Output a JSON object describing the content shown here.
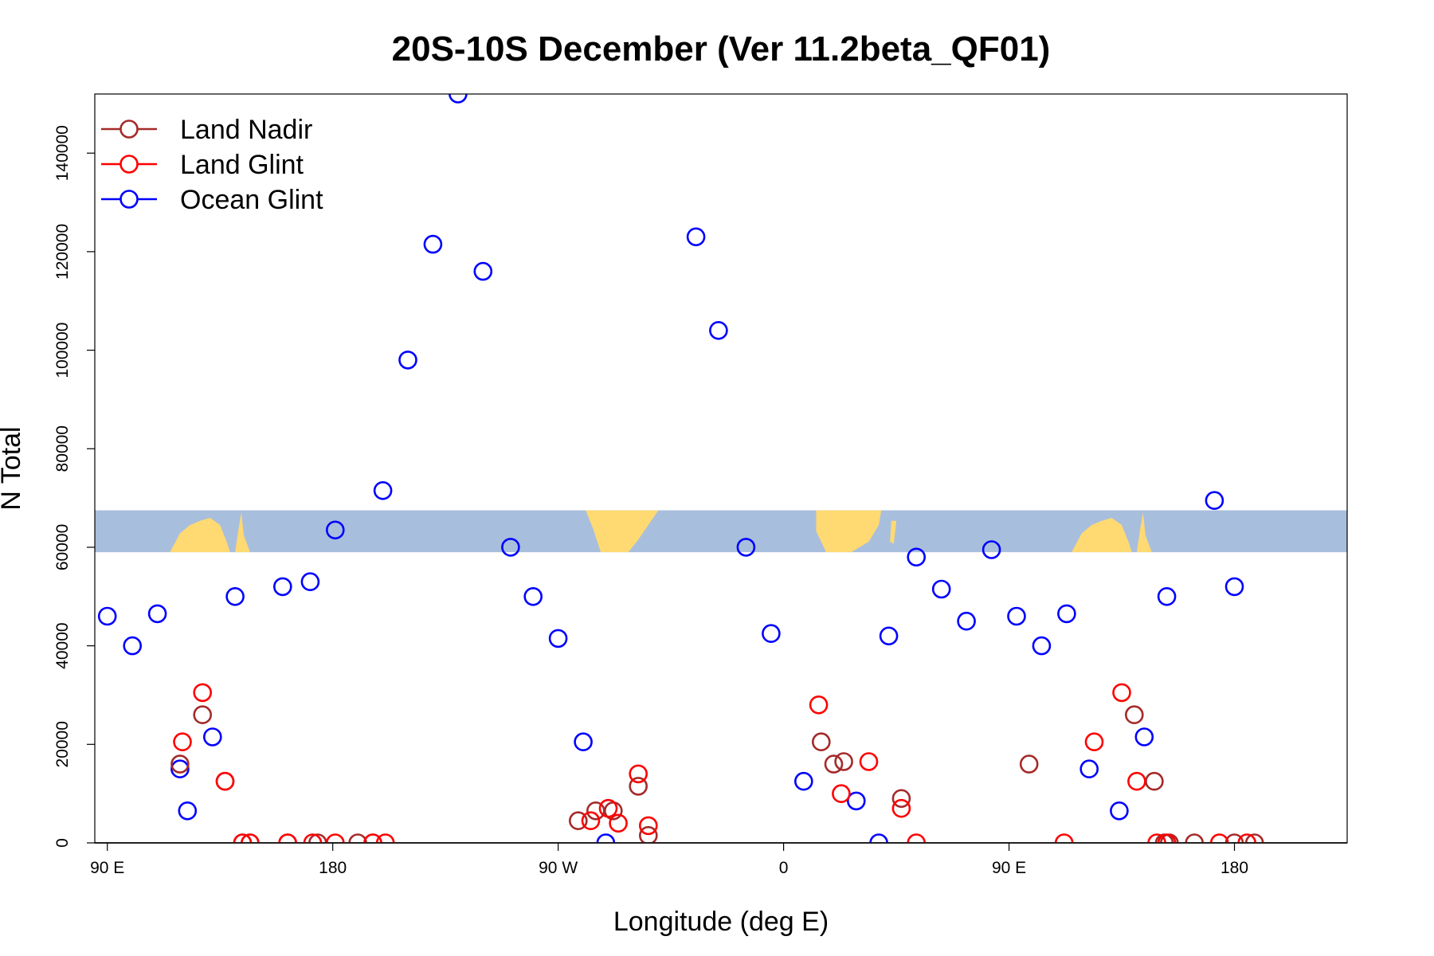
{
  "chart_data": {
    "type": "scatter",
    "title": "20S-10S December (Ver 11.2beta_QF01)",
    "xlabel": "Longitude (deg E)",
    "ylabel": "N Total",
    "xlim": [
      85,
      585
    ],
    "ylim": [
      0,
      152000
    ],
    "x_ticks": [
      {
        "value": 90,
        "label": "90 E"
      },
      {
        "value": 180,
        "label": "180"
      },
      {
        "value": 270,
        "label": "90 W"
      },
      {
        "value": 360,
        "label": "0"
      },
      {
        "value": 450,
        "label": "90 E"
      },
      {
        "value": 540,
        "label": "180"
      }
    ],
    "y_ticks": [
      {
        "value": 0,
        "label": "0"
      },
      {
        "value": 20000,
        "label": "20000"
      },
      {
        "value": 40000,
        "label": "40000"
      },
      {
        "value": 60000,
        "label": "60000"
      },
      {
        "value": 80000,
        "label": "80000"
      },
      {
        "value": 100000,
        "label": "100000"
      },
      {
        "value": 120000,
        "label": "120000"
      },
      {
        "value": 140000,
        "label": "140000"
      }
    ],
    "map_strip": {
      "y_range": [
        59000,
        67500
      ],
      "ocean_color": "#a8bedd",
      "land_color": "#ffd972"
    },
    "legend": {
      "position": "top-left",
      "entries": [
        "Land Nadir",
        "Land Glint",
        "Ocean Glint"
      ]
    },
    "colors": {
      "Land Nadir": "#a52a2a",
      "Land Glint": "#ff0000",
      "Ocean Glint": "#0000ff"
    },
    "series": [
      {
        "name": "Ocean Glint",
        "points": [
          [
            90,
            46000
          ],
          [
            100,
            40000
          ],
          [
            110,
            46500
          ],
          [
            119,
            15000
          ],
          [
            122,
            6500
          ],
          [
            132,
            21500
          ],
          [
            141,
            50000
          ],
          [
            160,
            52000
          ],
          [
            171,
            53000
          ],
          [
            181,
            63500
          ],
          [
            200,
            71500
          ],
          [
            210,
            98000
          ],
          [
            220,
            121500
          ],
          [
            230,
            152000
          ],
          [
            240,
            116000
          ],
          [
            251,
            60000
          ],
          [
            260,
            50000
          ],
          [
            270,
            41500
          ],
          [
            280,
            20500
          ],
          [
            289,
            0
          ],
          [
            325,
            123000
          ],
          [
            334,
            104000
          ],
          [
            345,
            60000
          ],
          [
            355,
            42500
          ],
          [
            368,
            12500
          ],
          [
            389,
            8500
          ],
          [
            398,
            0
          ],
          [
            402,
            42000
          ],
          [
            413,
            58000
          ],
          [
            423,
            51500
          ],
          [
            433,
            45000
          ],
          [
            443,
            59500
          ],
          [
            453,
            46000
          ],
          [
            463,
            40000
          ],
          [
            473,
            46500
          ],
          [
            482,
            15000
          ],
          [
            494,
            6500
          ],
          [
            504,
            21500
          ],
          [
            513,
            50000
          ],
          [
            532,
            69500
          ],
          [
            540,
            52000
          ]
        ]
      },
      {
        "name": "Land Nadir",
        "points": [
          [
            119,
            16000
          ],
          [
            128,
            26000
          ],
          [
            137,
            12500
          ],
          [
            144,
            0
          ],
          [
            147,
            0
          ],
          [
            162,
            0
          ],
          [
            174,
            0
          ],
          [
            190,
            0
          ],
          [
            196,
            0
          ],
          [
            278,
            4500
          ],
          [
            285,
            6500
          ],
          [
            292,
            6500
          ],
          [
            302,
            11500
          ],
          [
            306,
            1500
          ],
          [
            375,
            20500
          ],
          [
            380,
            16000
          ],
          [
            384,
            16500
          ],
          [
            407,
            9000
          ],
          [
            458,
            16000
          ],
          [
            500,
            26000
          ],
          [
            508,
            12500
          ],
          [
            512,
            0
          ],
          [
            514,
            0
          ],
          [
            524,
            0
          ],
          [
            540,
            0
          ],
          [
            548,
            0
          ]
        ]
      },
      {
        "name": "Land Glint",
        "points": [
          [
            120,
            20500
          ],
          [
            128,
            30500
          ],
          [
            137,
            12500
          ],
          [
            144,
            0
          ],
          [
            147,
            0
          ],
          [
            162,
            0
          ],
          [
            172,
            0
          ],
          [
            181,
            0
          ],
          [
            196,
            0
          ],
          [
            201,
            0
          ],
          [
            283,
            4500
          ],
          [
            290,
            7000
          ],
          [
            302,
            14000
          ],
          [
            294,
            4000
          ],
          [
            306,
            3500
          ],
          [
            374,
            28000
          ],
          [
            383,
            10000
          ],
          [
            394,
            16500
          ],
          [
            407,
            7000
          ],
          [
            413,
            0
          ],
          [
            472,
            0
          ],
          [
            484,
            20500
          ],
          [
            495,
            30500
          ],
          [
            501,
            12500
          ],
          [
            509,
            0
          ],
          [
            513,
            0
          ],
          [
            534,
            0
          ],
          [
            545,
            0
          ]
        ]
      }
    ]
  }
}
